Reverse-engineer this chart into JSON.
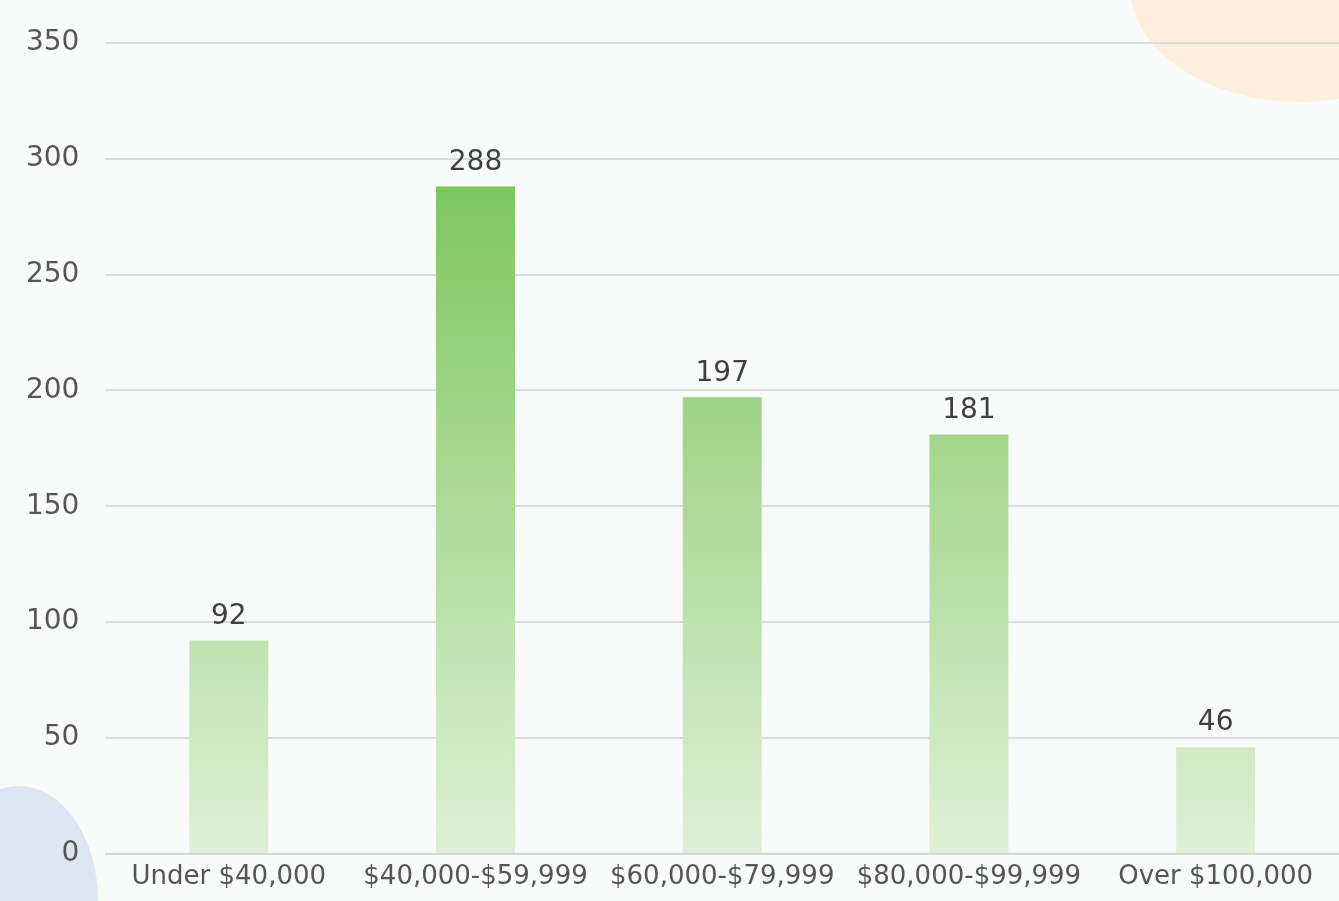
{
  "chart_data": {
    "type": "bar",
    "categories": [
      "Under $40,000",
      "$40,000-$59,999",
      "$60,000-$79,999",
      "$80,000-$99,999",
      "Over $100,000"
    ],
    "values": [
      92,
      288,
      197,
      181,
      46
    ],
    "color": "#6abd45",
    "ylim": [
      0,
      350
    ],
    "yticks": [
      0,
      50,
      100,
      150,
      200,
      250,
      300,
      350
    ],
    "grid": "y",
    "legend": false,
    "data_labels": true
  }
}
